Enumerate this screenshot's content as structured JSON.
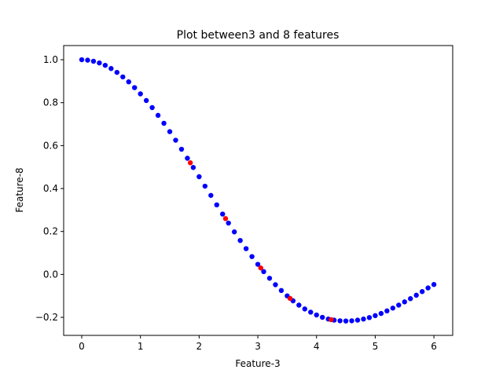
{
  "chart_data": {
    "type": "scatter",
    "title": "Plot between3 and 8 features",
    "x_label": "Feature-3",
    "y_label": "Feature-8",
    "series": [
      {
        "color": "#0000ff",
        "x": [
          0.0,
          0.1,
          0.2,
          0.3,
          0.4,
          0.5,
          0.6,
          0.7,
          0.8,
          0.9,
          1.0,
          1.1,
          1.2,
          1.3,
          1.4,
          1.5,
          1.6,
          1.7,
          1.8,
          1.9,
          2.0,
          2.1,
          2.2,
          2.3,
          2.4,
          2.5,
          2.6,
          2.7,
          2.8,
          2.9,
          3.0,
          3.1,
          3.2,
          3.3,
          3.4,
          3.5,
          3.6,
          3.7,
          3.8,
          3.9,
          4.0,
          4.1,
          4.2,
          4.3,
          4.4,
          4.5,
          4.6,
          4.7,
          4.8,
          4.9,
          5.0,
          5.1,
          5.2,
          5.3,
          5.4,
          5.5,
          5.6,
          5.7,
          5.8,
          5.9,
          6.0
        ],
        "values": [
          1.0,
          0.998,
          0.993,
          0.985,
          0.974,
          0.959,
          0.941,
          0.92,
          0.897,
          0.87,
          0.841,
          0.81,
          0.777,
          0.741,
          0.704,
          0.665,
          0.625,
          0.583,
          0.541,
          0.498,
          0.455,
          0.411,
          0.368,
          0.324,
          0.281,
          0.239,
          0.198,
          0.158,
          0.12,
          0.083,
          0.047,
          0.013,
          -0.018,
          -0.048,
          -0.075,
          -0.1,
          -0.123,
          -0.143,
          -0.161,
          -0.176,
          -0.189,
          -0.2,
          -0.208,
          -0.213,
          -0.216,
          -0.217,
          -0.216,
          -0.213,
          -0.208,
          -0.201,
          -0.192,
          -0.182,
          -0.17,
          -0.157,
          -0.143,
          -0.128,
          -0.113,
          -0.097,
          -0.08,
          -0.063,
          -0.047
        ]
      },
      {
        "color": "#ff0000",
        "x": [
          1.85,
          2.45,
          3.05,
          3.55,
          4.25
        ],
        "values": [
          0.52,
          0.26,
          0.03,
          -0.112,
          -0.211
        ]
      }
    ],
    "xlim": [
      -0.308,
      6.32
    ],
    "ylim": [
      -0.284,
      1.066
    ],
    "xticks": [
      0,
      1,
      2,
      3,
      4,
      5,
      6
    ],
    "yticks": [
      {
        "value": -0.2,
        "label": "−0.2"
      },
      {
        "value": 0.0,
        "label": "0.0"
      },
      0.2,
      0.4,
      0.6,
      0.8,
      {
        "value": 1.0,
        "label": "1.0"
      }
    ]
  }
}
